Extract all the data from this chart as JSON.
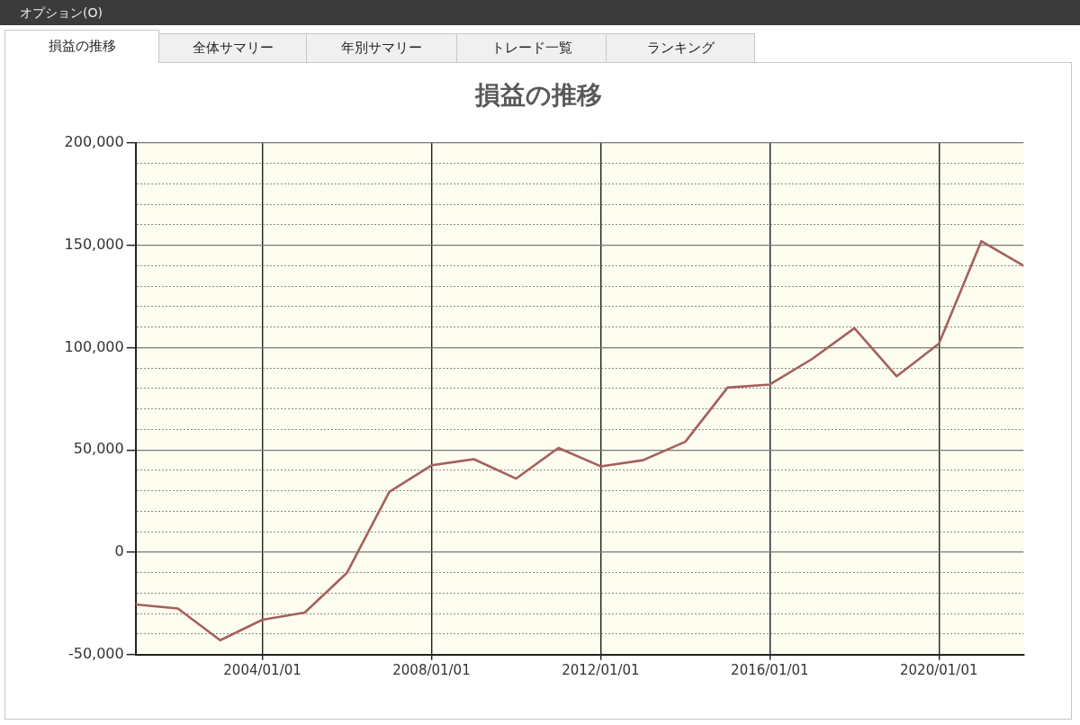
{
  "chart_data": {
    "type": "line",
    "title": "損益の推移",
    "annotations": [
      "オプション(O)",
      "損益の推移",
      "全体サマリー",
      "年別サマリー",
      "トレード一覧",
      "ランキング"
    ],
    "x": [
      "2001-01-01",
      "2002-01-01",
      "2003-01-01",
      "2004-01-01",
      "2005-01-01",
      "2006-01-01",
      "2007-01-01",
      "2008-01-01",
      "2009-01-01",
      "2010-01-01",
      "2011-01-01",
      "2012-01-01",
      "2013-01-01",
      "2014-01-01",
      "2015-01-01",
      "2016-01-01",
      "2017-01-01",
      "2018-01-01",
      "2019-01-01",
      "2020-01-01",
      "2021-01-01",
      "2022-01-01"
    ],
    "values": [
      -25500,
      -27500,
      -43000,
      -33000,
      -29500,
      -10000,
      29500,
      42500,
      45500,
      36000,
      51000,
      42000,
      45000,
      54000,
      80500,
      82000,
      94500,
      109500,
      86000,
      102000,
      152000,
      140000
    ],
    "color": "#a5605c",
    "xlim": [
      "2001-01-01",
      "2022-01-01"
    ],
    "xticks": [
      {
        "value": "2004-01-01",
        "label": "2004/01/01"
      },
      {
        "value": "2008-01-01",
        "label": "2008/01/01"
      },
      {
        "value": "2012-01-01",
        "label": "2012/01/01"
      },
      {
        "value": "2016-01-01",
        "label": "2016/01/01"
      },
      {
        "value": "2020-01-01",
        "label": "2020/01/01"
      }
    ],
    "ylim": [
      -50000,
      200000
    ],
    "yticks": [
      {
        "value": -50000,
        "label": "-50,000"
      },
      {
        "value": -40000,
        "label": null
      },
      {
        "value": -30000,
        "label": null
      },
      {
        "value": -20000,
        "label": null
      },
      {
        "value": -10000,
        "label": null
      },
      0,
      {
        "value": 10000,
        "label": null
      },
      {
        "value": 20000,
        "label": null
      },
      {
        "value": 30000,
        "label": null
      },
      {
        "value": 40000,
        "label": null
      },
      {
        "value": 50000,
        "label": "50,000"
      },
      {
        "value": 60000,
        "label": null
      },
      {
        "value": 70000,
        "label": null
      },
      {
        "value": 80000,
        "label": null
      },
      {
        "value": 90000,
        "label": null
      },
      {
        "value": 100000,
        "label": "100,000"
      },
      {
        "value": 110000,
        "label": null
      },
      {
        "value": 120000,
        "label": null
      },
      {
        "value": 130000,
        "label": null
      },
      {
        "value": 140000,
        "label": null
      },
      {
        "value": 150000,
        "label": "150,000"
      },
      {
        "value": 160000,
        "label": null
      },
      {
        "value": 170000,
        "label": null
      },
      {
        "value": 180000,
        "label": null
      },
      {
        "value": 190000,
        "label": null
      },
      {
        "value": 200000,
        "label": "200,000"
      }
    ],
    "grid": true,
    "legend": false
  }
}
